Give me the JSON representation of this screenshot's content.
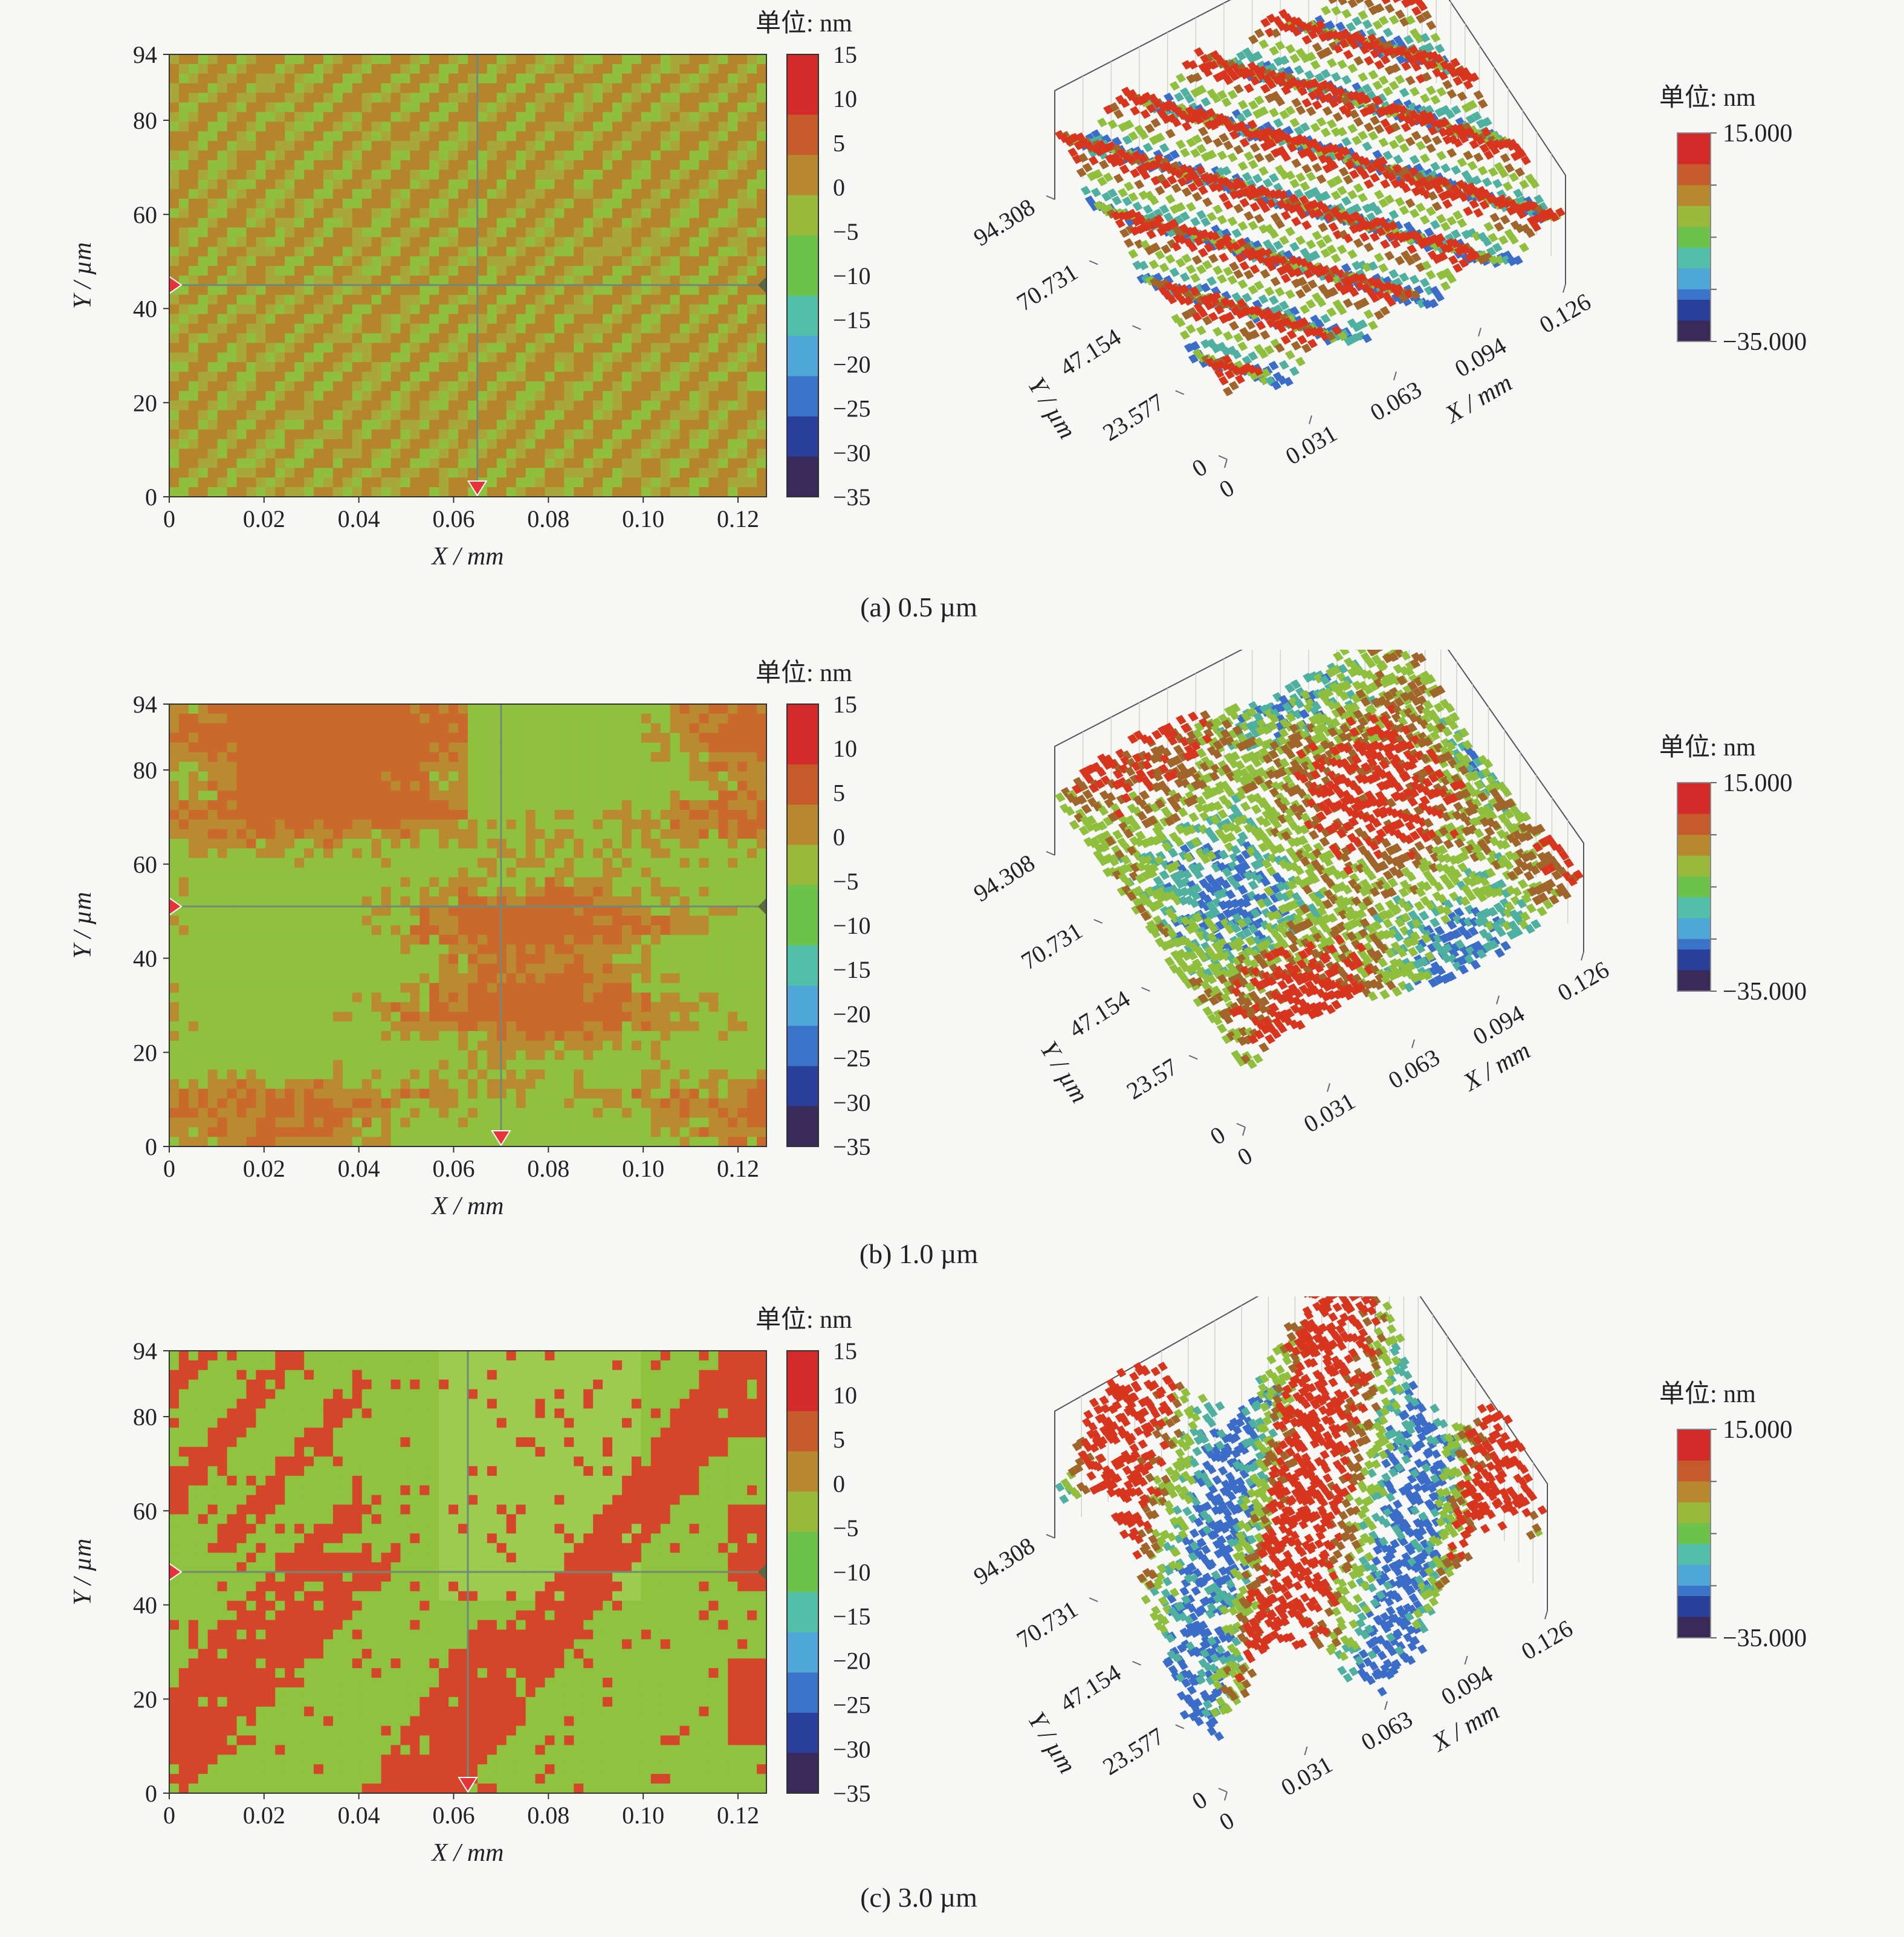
{
  "panels": [
    {
      "caption": "(a) 0.5 µm",
      "map2d": {
        "unit_label": "单位: nm",
        "x_ticks": [
          "0",
          "0.02",
          "0.04",
          "0.06",
          "0.08",
          "0.10",
          "0.12"
        ],
        "y_ticks": [
          "0",
          "20",
          "40",
          "60",
          "80",
          "94"
        ],
        "xlabel": "X / mm",
        "ylabel": "Y / µm",
        "colorbar_ticks": [
          "15",
          "10",
          "5",
          "0",
          "−5",
          "−10",
          "−15",
          "−20",
          "−25",
          "−30",
          "−35"
        ]
      },
      "map3d": {
        "unit_label": "单位: nm",
        "colorbar_max": "15.000",
        "colorbar_min": "−35.000",
        "y_ticks": [
          "0",
          "23.577",
          "47.154",
          "70.731",
          "94.308"
        ],
        "x_ticks": [
          "0",
          "0.031",
          "0.063",
          "0.094",
          "0.126"
        ],
        "xlabel": "X / mm",
        "ylabel": "Y / µm"
      }
    },
    {
      "caption": "(b) 1.0 µm",
      "map2d": {
        "unit_label": "单位: nm",
        "x_ticks": [
          "0",
          "0.02",
          "0.04",
          "0.06",
          "0.08",
          "0.10",
          "0.12"
        ],
        "y_ticks": [
          "0",
          "20",
          "40",
          "60",
          "80",
          "94"
        ],
        "xlabel": "X / mm",
        "ylabel": "Y / µm",
        "colorbar_ticks": [
          "15",
          "10",
          "5",
          "0",
          "−5",
          "−10",
          "−15",
          "−20",
          "−25",
          "−30",
          "−35"
        ]
      },
      "map3d": {
        "unit_label": "单位: nm",
        "colorbar_max": "15.000",
        "colorbar_min": "−35.000",
        "y_ticks": [
          "0",
          "23.57",
          "47.154",
          "70.731",
          "94.308"
        ],
        "x_ticks": [
          "0",
          "0.031",
          "0.063",
          "0.094",
          "0.126"
        ],
        "xlabel": "X / mm",
        "ylabel": "Y / µm"
      }
    },
    {
      "caption": "(c) 3.0 µm",
      "map2d": {
        "unit_label": "单位: nm",
        "x_ticks": [
          "0",
          "0.02",
          "0.04",
          "0.06",
          "0.08",
          "0.10",
          "0.12"
        ],
        "y_ticks": [
          "0",
          "20",
          "40",
          "60",
          "80",
          "94"
        ],
        "xlabel": "X / mm",
        "ylabel": "Y / µm",
        "colorbar_ticks": [
          "15",
          "10",
          "5",
          "0",
          "−5",
          "−10",
          "−15",
          "−20",
          "−25",
          "−30",
          "−35"
        ]
      },
      "map3d": {
        "unit_label": "单位: nm",
        "colorbar_max": "15.000",
        "colorbar_min": "−35.000",
        "y_ticks": [
          "0",
          "23.577",
          "47.154",
          "70.731",
          "94.308"
        ],
        "x_ticks": [
          "0",
          "0.031",
          "0.063",
          "0.094",
          "0.126"
        ],
        "xlabel": "X / mm",
        "ylabel": "Y / µm"
      }
    }
  ],
  "colors": {
    "colormap": [
      "#3a2a5a",
      "#2a3f9a",
      "#3a73c8",
      "#4fa7d8",
      "#52c0a8",
      "#6cc24a",
      "#9ab83a",
      "#b8882e",
      "#c65a2a",
      "#d42a2a"
    ],
    "surface_red": "#d8351f",
    "surface_orange": "#c98a2a",
    "surface_green": "#8fbf3c",
    "surface_blue": "#3a6cc8",
    "crosshair": "#6f8b78",
    "marker_red": "#e8323a"
  },
  "chart_data": [
    {
      "type": "heatmap",
      "title": "(a) 0.5 µm",
      "view": "2d",
      "x_range_mm": [
        0,
        0.126
      ],
      "y_range_um": [
        0,
        94
      ],
      "z_range_nm": [
        -35,
        15
      ],
      "colorbar_ticks": [
        15,
        10,
        5,
        0,
        -5,
        -10,
        -15,
        -20,
        -25,
        -30,
        -35
      ],
      "xlabel": "X / mm",
      "ylabel": "Y / µm",
      "crosshair": {
        "x_mm": 0.065,
        "y_um": 45
      },
      "dominant_colors": [
        "orange-brown",
        "light green"
      ],
      "pattern": "fine diagonal stripes"
    },
    {
      "type": "heatmap",
      "title": "(a) 0.5 µm",
      "view": "3d",
      "x_ticks": [
        0,
        0.031,
        0.063,
        0.094,
        0.126
      ],
      "y_ticks": [
        0,
        23.577,
        47.154,
        70.731,
        94.308
      ],
      "z_range_nm": [
        -35,
        15
      ],
      "xlabel": "X / mm",
      "ylabel": "Y / µm"
    },
    {
      "type": "heatmap",
      "title": "(b) 1.0 µm",
      "view": "2d",
      "x_range_mm": [
        0,
        0.126
      ],
      "y_range_um": [
        0,
        94
      ],
      "z_range_nm": [
        -35,
        15
      ],
      "colorbar_ticks": [
        15,
        10,
        5,
        0,
        -5,
        -10,
        -15,
        -20,
        -25,
        -30,
        -35
      ],
      "xlabel": "X / mm",
      "ylabel": "Y / µm",
      "crosshair": {
        "x_mm": 0.07,
        "y_um": 51
      },
      "dominant_colors": [
        "orange-brown",
        "light green"
      ],
      "pattern": "patchy blocks with horizontal striation"
    },
    {
      "type": "heatmap",
      "title": "(b) 1.0 µm",
      "view": "3d",
      "x_ticks": [
        0,
        0.031,
        0.063,
        0.094,
        0.126
      ],
      "y_ticks": [
        0,
        23.57,
        47.154,
        70.731,
        94.308
      ],
      "z_range_nm": [
        -35,
        15
      ],
      "xlabel": "X / mm",
      "ylabel": "Y / µm"
    },
    {
      "type": "heatmap",
      "title": "(c) 3.0 µm",
      "view": "2d",
      "x_range_mm": [
        0,
        0.126
      ],
      "y_range_um": [
        0,
        94
      ],
      "z_range_nm": [
        -35,
        15
      ],
      "colorbar_ticks": [
        15,
        10,
        5,
        0,
        -5,
        -10,
        -15,
        -20,
        -25,
        -30,
        -35
      ],
      "xlabel": "X / mm",
      "ylabel": "Y / µm",
      "crosshair": {
        "x_mm": 0.063,
        "y_um": 47
      },
      "dominant_colors": [
        "red",
        "light green"
      ],
      "pattern": "broad diagonal bands"
    },
    {
      "type": "heatmap",
      "title": "(c) 3.0 µm",
      "view": "3d",
      "x_ticks": [
        0,
        0.031,
        0.063,
        0.094,
        0.126
      ],
      "y_ticks": [
        0,
        23.577,
        47.154,
        70.731,
        94.308
      ],
      "z_range_nm": [
        -35,
        15
      ],
      "xlabel": "X / mm",
      "ylabel": "Y / µm"
    }
  ]
}
